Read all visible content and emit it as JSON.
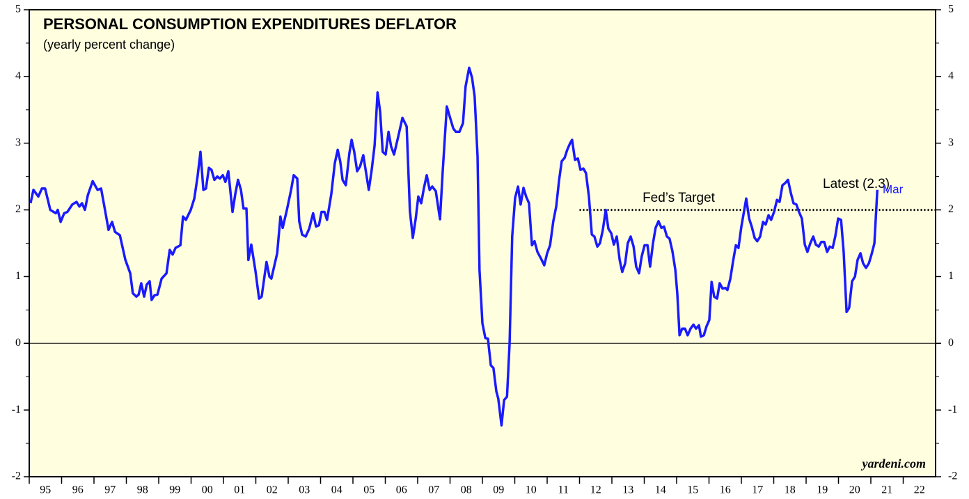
{
  "chart_data": {
    "type": "line",
    "title": "PERSONAL CONSUMPTION EXPENDITURES DEFLATOR",
    "subtitle": "(yearly percent change)",
    "source": "yardeni.com",
    "xlim": [
      1995,
      2023
    ],
    "ylim": [
      -2,
      5
    ],
    "yticks": [
      -2,
      -1,
      0,
      1,
      2,
      3,
      4,
      5
    ],
    "yminor": [
      -1.5,
      -0.5,
      0.5,
      1.5,
      2.5,
      3.5,
      4.5
    ],
    "xticks": [
      {
        "value": 1995,
        "label": "95"
      },
      {
        "value": 1996,
        "label": "96"
      },
      {
        "value": 1997,
        "label": "97"
      },
      {
        "value": 1998,
        "label": "98"
      },
      {
        "value": 1999,
        "label": "99"
      },
      {
        "value": 2000,
        "label": "00"
      },
      {
        "value": 2001,
        "label": "01"
      },
      {
        "value": 2002,
        "label": "02"
      },
      {
        "value": 2003,
        "label": "03"
      },
      {
        "value": 2004,
        "label": "04"
      },
      {
        "value": 2005,
        "label": "05"
      },
      {
        "value": 2006,
        "label": "06"
      },
      {
        "value": 2007,
        "label": "07"
      },
      {
        "value": 2008,
        "label": "08"
      },
      {
        "value": 2009,
        "label": "09"
      },
      {
        "value": 2010,
        "label": "10"
      },
      {
        "value": 2011,
        "label": "11"
      },
      {
        "value": 2012,
        "label": "12"
      },
      {
        "value": 2013,
        "label": "13"
      },
      {
        "value": 2014,
        "label": "14"
      },
      {
        "value": 2015,
        "label": "15"
      },
      {
        "value": 2016,
        "label": "16"
      },
      {
        "value": 2017,
        "label": "17"
      },
      {
        "value": 2018,
        "label": "18"
      },
      {
        "value": 2019,
        "label": "19"
      },
      {
        "value": 2020,
        "label": "20"
      },
      {
        "value": 2021,
        "label": "21"
      },
      {
        "value": 2022,
        "label": "22"
      }
    ],
    "reference_line": {
      "label": "Fed’s Target",
      "value": 2,
      "x_start": 2012
    },
    "annotations": [
      {
        "text": "Latest (2.3)"
      },
      {
        "text": "Mar",
        "color": "#1a1aff"
      }
    ],
    "x": [
      1995.04,
      1995.13,
      1995.28,
      1995.39,
      1995.49,
      1995.65,
      1995.82,
      1995.88,
      1995.97,
      1996.08,
      1996.18,
      1996.33,
      1996.46,
      1996.55,
      1996.63,
      1996.72,
      1996.81,
      1996.96,
      1997.11,
      1997.22,
      1997.34,
      1997.45,
      1997.56,
      1997.65,
      1997.8,
      1997.97,
      1998.12,
      1998.2,
      1998.31,
      1998.38,
      1998.46,
      1998.55,
      1998.63,
      1998.72,
      1998.78,
      1998.87,
      1998.96,
      1999.09,
      1999.24,
      1999.34,
      1999.43,
      1999.52,
      1999.67,
      1999.75,
      1999.84,
      1999.99,
      2000.1,
      2000.2,
      2000.29,
      2000.38,
      2000.46,
      2000.55,
      2000.63,
      2000.72,
      2000.81,
      2000.89,
      2000.98,
      2001.06,
      2001.15,
      2001.28,
      2001.37,
      2001.45,
      2001.54,
      2001.62,
      2001.71,
      2001.77,
      2001.86,
      2001.99,
      2002.1,
      2002.18,
      2002.33,
      2002.42,
      2002.48,
      2002.66,
      2002.76,
      2002.83,
      2002.96,
      2003.09,
      2003.17,
      2003.28,
      2003.34,
      2003.43,
      2003.54,
      2003.65,
      2003.77,
      2003.86,
      2003.95,
      2004.03,
      2004.12,
      2004.2,
      2004.33,
      2004.44,
      2004.53,
      2004.61,
      2004.68,
      2004.78,
      2004.89,
      2004.96,
      2005.04,
      2005.13,
      2005.22,
      2005.32,
      2005.49,
      2005.58,
      2005.67,
      2005.76,
      2005.84,
      2005.92,
      2006.01,
      2006.1,
      2006.18,
      2006.27,
      2006.4,
      2006.53,
      2006.66,
      2006.76,
      2006.85,
      2006.94,
      2007.02,
      2007.11,
      2007.19,
      2007.28,
      2007.37,
      2007.45,
      2007.56,
      2007.69,
      2007.77,
      2007.9,
      2007.99,
      2008.1,
      2008.18,
      2008.29,
      2008.4,
      2008.48,
      2008.59,
      2008.68,
      2008.76,
      2008.85,
      2008.91,
      2009.0,
      2009.09,
      2009.17,
      2009.26,
      2009.34,
      2009.43,
      2009.49,
      2009.59,
      2009.67,
      2009.76,
      2009.84,
      2009.92,
      2010.01,
      2010.1,
      2010.18,
      2010.27,
      2010.35,
      2010.44,
      2010.53,
      2010.61,
      2010.7,
      2010.81,
      2010.91,
      2011.0,
      2011.09,
      2011.19,
      2011.28,
      2011.37,
      2011.45,
      2011.54,
      2011.62,
      2011.71,
      2011.77,
      2011.86,
      2011.95,
      2012.03,
      2012.12,
      2012.2,
      2012.29,
      2012.38,
      2012.46,
      2012.55,
      2012.63,
      2012.72,
      2012.81,
      2012.89,
      2012.98,
      2013.06,
      2013.15,
      2013.24,
      2013.32,
      2013.41,
      2013.49,
      2013.58,
      2013.67,
      2013.75,
      2013.84,
      2013.92,
      2014.01,
      2014.1,
      2014.18,
      2014.27,
      2014.35,
      2014.44,
      2014.53,
      2014.61,
      2014.7,
      2014.78,
      2014.87,
      2014.96,
      2015.02,
      2015.09,
      2015.17,
      2015.26,
      2015.34,
      2015.43,
      2015.52,
      2015.6,
      2015.69,
      2015.75,
      2015.84,
      2015.92,
      2016.01,
      2016.08,
      2016.16,
      2016.25,
      2016.33,
      2016.42,
      2016.51,
      2016.57,
      2016.66,
      2016.74,
      2016.83,
      2016.91,
      2017.0,
      2017.09,
      2017.15,
      2017.24,
      2017.32,
      2017.41,
      2017.49,
      2017.58,
      2017.67,
      2017.75,
      2017.84,
      2017.92,
      2018.01,
      2018.1,
      2018.18,
      2018.27,
      2018.35,
      2018.44,
      2018.53,
      2018.61,
      2018.7,
      2018.78,
      2018.87,
      2018.96,
      2019.04,
      2019.13,
      2019.22,
      2019.3,
      2019.39,
      2019.47,
      2019.56,
      2019.65,
      2019.73,
      2019.82,
      2019.9,
      2019.99,
      2020.08,
      2020.16,
      2020.25,
      2020.33,
      2020.42,
      2020.51,
      2020.59,
      2020.68,
      2020.76,
      2020.85,
      2020.94,
      2021.02,
      2021.11,
      2021.2
    ],
    "series": [
      {
        "name": "PCE deflator",
        "color": "#1a1aff",
        "values": [
          2.1,
          2.3,
          2.2,
          2.32,
          2.32,
          2.0,
          1.95,
          2.0,
          1.82,
          1.95,
          1.97,
          2.08,
          2.12,
          2.05,
          2.1,
          2.0,
          2.22,
          2.43,
          2.3,
          2.32,
          2.0,
          1.7,
          1.82,
          1.67,
          1.62,
          1.25,
          1.05,
          0.75,
          0.7,
          0.73,
          0.9,
          0.7,
          0.88,
          0.93,
          0.65,
          0.72,
          0.73,
          0.97,
          1.05,
          1.4,
          1.33,
          1.43,
          1.47,
          1.9,
          1.85,
          2.0,
          2.17,
          2.5,
          2.87,
          2.3,
          2.32,
          2.63,
          2.6,
          2.45,
          2.5,
          2.47,
          2.52,
          2.42,
          2.58,
          1.97,
          2.25,
          2.45,
          2.3,
          2.02,
          2.02,
          1.25,
          1.48,
          1.08,
          0.67,
          0.7,
          1.22,
          1.0,
          0.97,
          1.35,
          1.9,
          1.73,
          2.0,
          2.3,
          2.52,
          2.47,
          1.83,
          1.63,
          1.6,
          1.72,
          1.95,
          1.75,
          1.77,
          1.97,
          1.97,
          1.85,
          2.23,
          2.7,
          2.9,
          2.72,
          2.45,
          2.37,
          2.85,
          3.05,
          2.87,
          2.58,
          2.65,
          2.82,
          2.3,
          2.6,
          2.97,
          3.76,
          3.47,
          2.87,
          2.83,
          3.17,
          2.95,
          2.83,
          3.1,
          3.38,
          3.25,
          1.98,
          1.58,
          1.87,
          2.2,
          2.1,
          2.32,
          2.52,
          2.3,
          2.35,
          2.28,
          1.86,
          2.55,
          3.55,
          3.4,
          3.22,
          3.17,
          3.17,
          3.3,
          3.85,
          4.13,
          3.98,
          3.7,
          2.8,
          1.1,
          0.3,
          0.08,
          0.07,
          -0.33,
          -0.37,
          -0.72,
          -0.83,
          -1.23,
          -0.85,
          -0.8,
          0.0,
          1.6,
          2.18,
          2.35,
          2.08,
          2.33,
          2.2,
          2.1,
          1.47,
          1.53,
          1.37,
          1.27,
          1.17,
          1.35,
          1.47,
          1.83,
          2.05,
          2.45,
          2.73,
          2.78,
          2.9,
          3.0,
          3.05,
          2.75,
          2.77,
          2.6,
          2.62,
          2.55,
          2.2,
          1.63,
          1.6,
          1.45,
          1.5,
          1.7,
          2.0,
          1.72,
          1.65,
          1.48,
          1.6,
          1.25,
          1.07,
          1.2,
          1.5,
          1.6,
          1.45,
          1.15,
          1.05,
          1.3,
          1.47,
          1.47,
          1.15,
          1.5,
          1.73,
          1.83,
          1.73,
          1.75,
          1.6,
          1.57,
          1.38,
          1.1,
          0.75,
          0.12,
          0.22,
          0.22,
          0.12,
          0.22,
          0.28,
          0.22,
          0.27,
          0.1,
          0.12,
          0.25,
          0.35,
          0.92,
          0.7,
          0.67,
          0.9,
          0.82,
          0.83,
          0.8,
          0.97,
          1.22,
          1.47,
          1.43,
          1.75,
          2.0,
          2.17,
          1.87,
          1.75,
          1.58,
          1.53,
          1.6,
          1.82,
          1.78,
          1.92,
          1.85,
          1.97,
          2.15,
          2.12,
          2.37,
          2.4,
          2.45,
          2.25,
          2.1,
          2.08,
          1.97,
          1.87,
          1.48,
          1.37,
          1.5,
          1.6,
          1.48,
          1.45,
          1.52,
          1.52,
          1.37,
          1.45,
          1.43,
          1.6,
          1.87,
          1.85,
          1.37,
          0.47,
          0.53,
          0.93,
          1.0,
          1.25,
          1.35,
          1.2,
          1.13,
          1.2,
          1.33,
          1.5,
          2.3
        ]
      }
    ]
  }
}
